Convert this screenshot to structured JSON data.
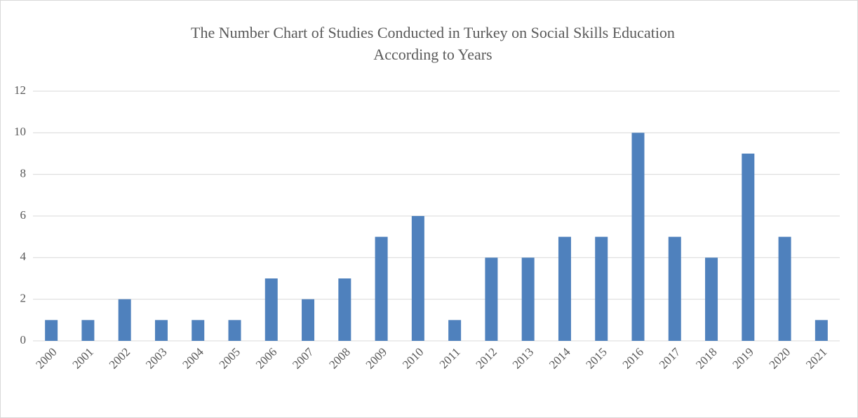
{
  "chart_data": {
    "type": "bar",
    "title": [
      "The Number Chart of Studies Conducted in Turkey on Social Skills Education",
      "According to Years"
    ],
    "categories": [
      "2000",
      "2001",
      "2002",
      "2003",
      "2004",
      "2005",
      "2006",
      "2007",
      "2008",
      "2009",
      "2010",
      "2011",
      "2012",
      "2013",
      "2014",
      "2015",
      "2016",
      "2017",
      "2018",
      "2019",
      "2020",
      "2021"
    ],
    "values": [
      1,
      1,
      2,
      1,
      1,
      1,
      3,
      2,
      3,
      5,
      6,
      1,
      4,
      4,
      5,
      5,
      10,
      5,
      4,
      9,
      5,
      1
    ],
    "color": "#4f81bd",
    "ylim": [
      0,
      12
    ],
    "yticks": [
      0,
      2,
      4,
      6,
      8,
      10,
      12
    ],
    "grid": true
  }
}
